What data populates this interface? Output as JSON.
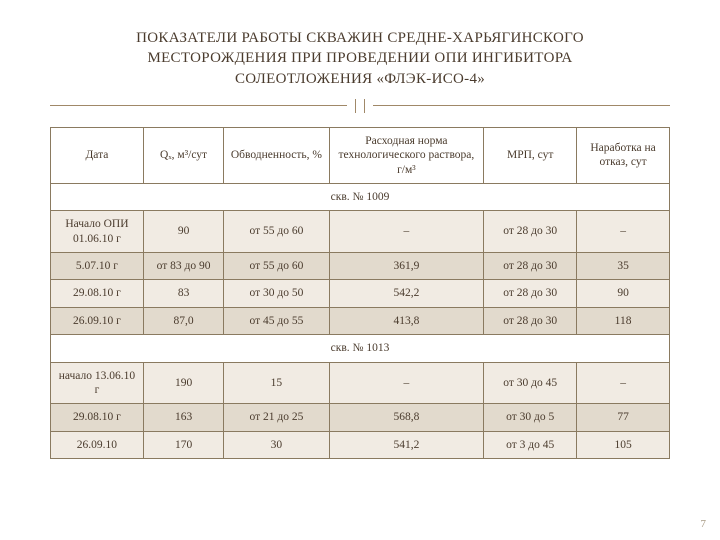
{
  "title_lines": [
    "ПОКАЗАТЕЛИ РАБОТЫ СКВАЖИН СРЕДНЕ-ХАРЬЯГИНСКОГО",
    "МЕСТОРОЖДЕНИЯ ПРИ ПРОВЕДЕНИИ ОПИ ИНГИБИТОРА",
    "СОЛЕОТЛОЖЕНИЯ «ФЛЭК-ИСО-4»"
  ],
  "page_number": "7",
  "table": {
    "columns": [
      "Дата",
      "Qₓ, м³/сут",
      "Обводненность, %",
      "Расходная норма технологического раствора, г/м³",
      "МРП, сут",
      "Наработка на отказ, сут"
    ],
    "col_widths_pct": [
      15,
      13,
      17,
      25,
      15,
      15
    ],
    "header_bg": "#ffffff",
    "band_colors": [
      "#f1ebe3",
      "#e2dacd"
    ],
    "border_color": "#8a7a60",
    "text_color": "#4a3b2d",
    "sections": [
      {
        "heading": "скв. № 1009",
        "rows": [
          {
            "band": "a",
            "cells": [
              "Начало ОПИ 01.06.10 г",
              "90",
              "от 55 до 60",
              "–",
              "от 28 до 30",
              "–"
            ]
          },
          {
            "band": "b",
            "cells": [
              "5.07.10 г",
              "от 83 до 90",
              "от 55 до 60",
              "361,9",
              "от 28 до 30",
              "35"
            ]
          },
          {
            "band": "a",
            "cells": [
              "29.08.10 г",
              "83",
              "от 30 до 50",
              "542,2",
              "от 28 до 30",
              "90"
            ]
          },
          {
            "band": "b",
            "cells": [
              "26.09.10 г",
              "87,0",
              "от 45 до 55",
              "413,8",
              "от 28 до 30",
              "118"
            ]
          }
        ]
      },
      {
        "heading": "скв. № 1013",
        "rows": [
          {
            "band": "a",
            "cells": [
              "начало 13.06.10 г",
              "190",
              "15",
              "–",
              "от 30 до 45",
              "–"
            ]
          },
          {
            "band": "b",
            "cells": [
              "29.08.10 г",
              "163",
              "от 21 до 25",
              "568,8",
              "от 30 до 5",
              "77"
            ]
          },
          {
            "band": "a",
            "cells": [
              "26.09.10",
              "170",
              "30",
              "541,2",
              "от 3 до 45",
              "105"
            ]
          }
        ]
      }
    ]
  }
}
